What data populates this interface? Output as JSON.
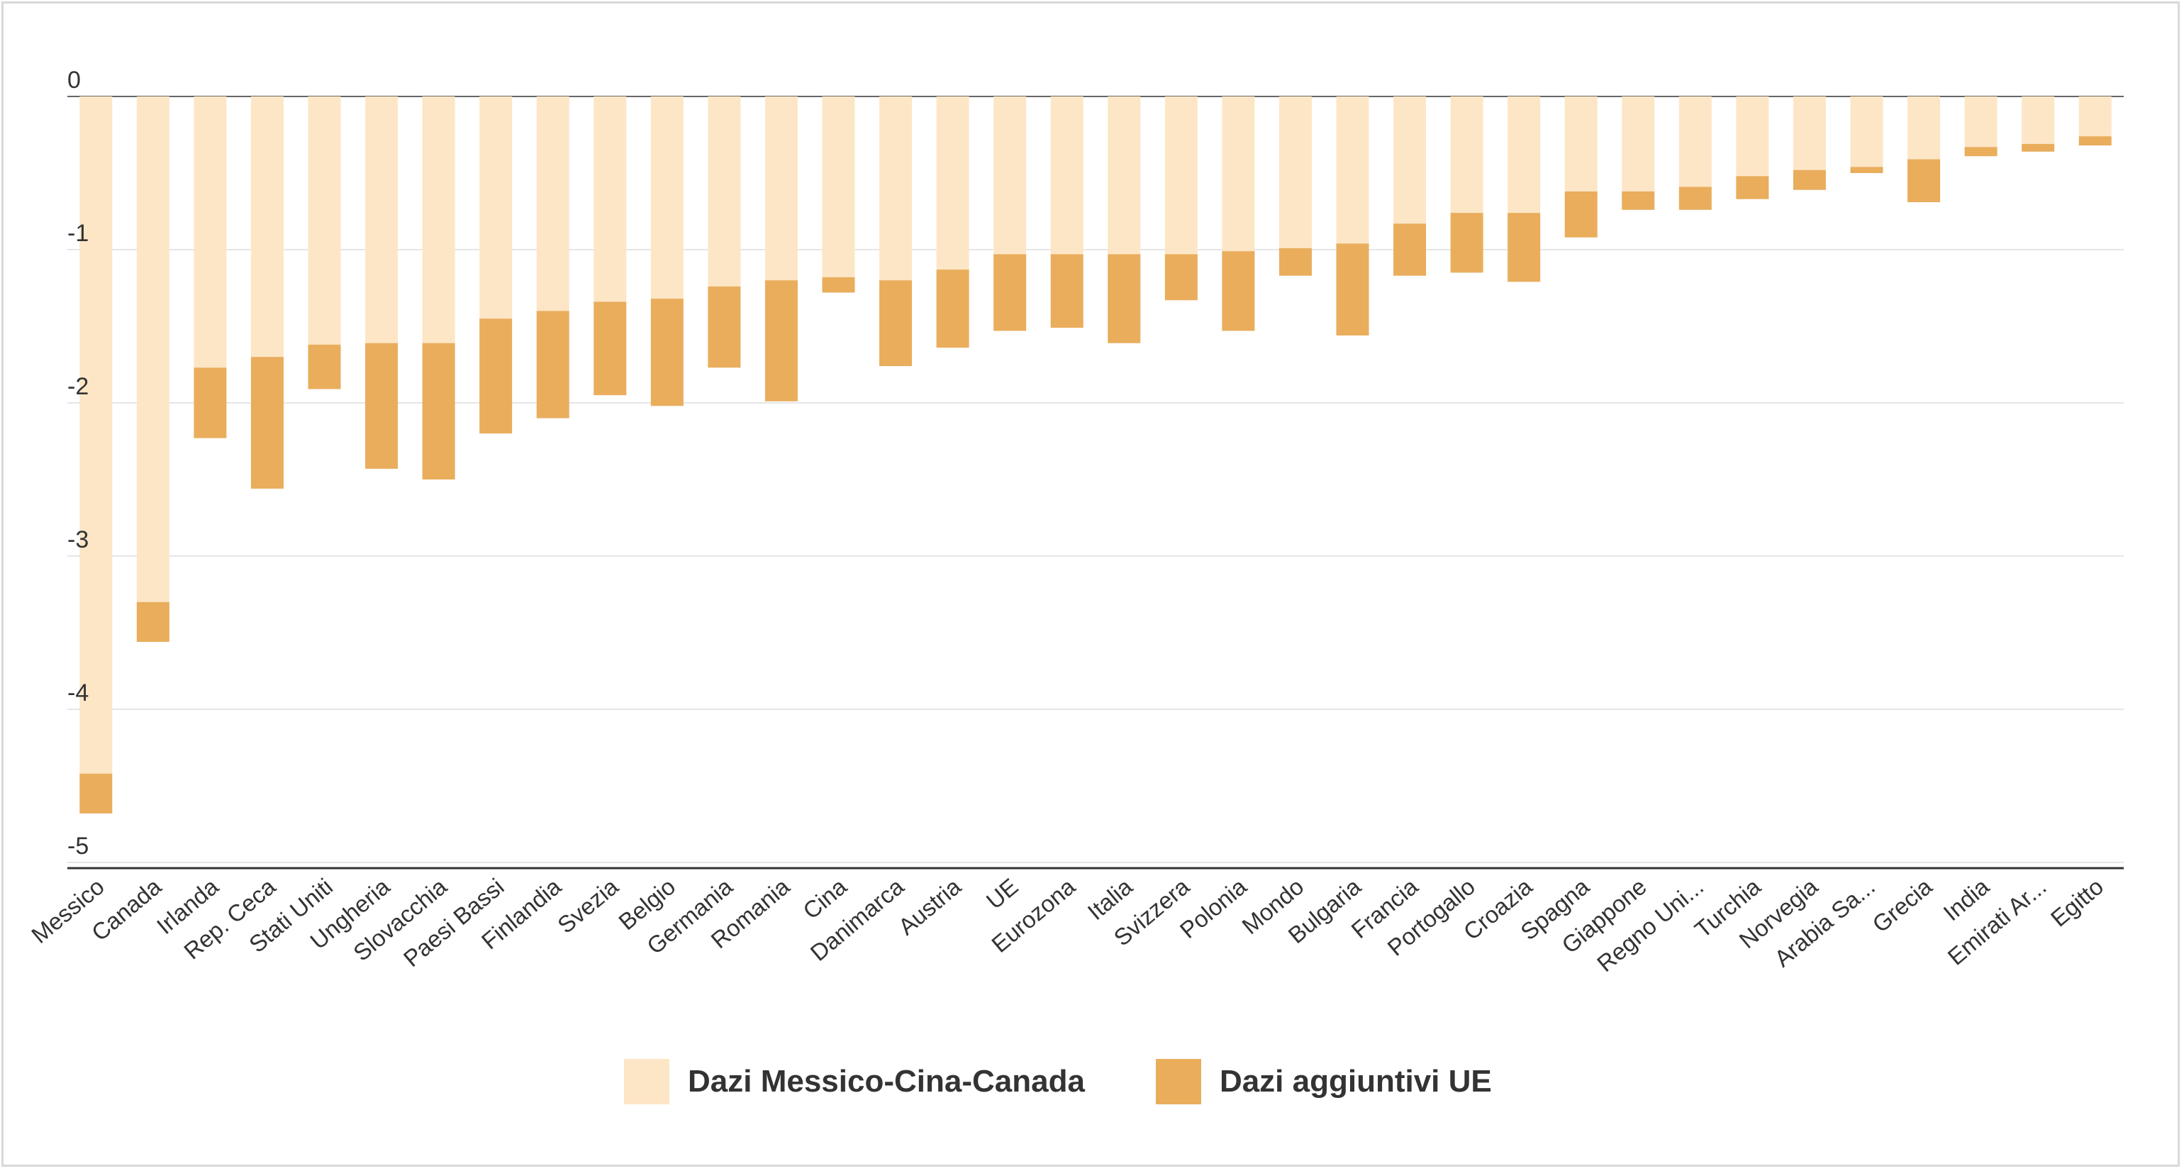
{
  "chart_data": {
    "type": "bar",
    "stacked": true,
    "categories": [
      "Messico",
      "Canada",
      "Irlanda",
      "Rep. Ceca",
      "Stati Uniti",
      "Ungheria",
      "Slovacchia",
      "Paesi Bassi",
      "Finlandia",
      "Svezia",
      "Belgio",
      "Germania",
      "Romania",
      "Cina",
      "Danimarca",
      "Austria",
      "UE",
      "Eurozona",
      "Italia",
      "Svizzera",
      "Polonia",
      "Mondo",
      "Bulgaria",
      "Francia",
      "Portogallo",
      "Croazia",
      "Spagna",
      "Giappone",
      "Regno Uni...",
      "Turchia",
      "Norvegia",
      "Arabia Sa...",
      "Grecia",
      "India",
      "Emirati Ar...",
      "Egitto"
    ],
    "series": [
      {
        "name": "Dazi Messico-Cina-Canada",
        "color": "#fde6c6",
        "values": [
          -4.42,
          -3.3,
          -1.77,
          -1.7,
          -1.62,
          -1.61,
          -1.61,
          -1.45,
          -1.4,
          -1.34,
          -1.32,
          -1.24,
          -1.2,
          -1.18,
          -1.2,
          -1.13,
          -1.03,
          -1.03,
          -1.03,
          -1.03,
          -1.01,
          -0.99,
          -0.96,
          -0.83,
          -0.76,
          -0.76,
          -0.62,
          -0.62,
          -0.59,
          -0.52,
          -0.48,
          -0.46,
          -0.41,
          -0.33,
          -0.31,
          -0.26
        ]
      },
      {
        "name": "Dazi aggiuntivi UE",
        "color": "#e9ad5c",
        "values": [
          -0.26,
          -0.26,
          -0.46,
          -0.86,
          -0.29,
          -0.82,
          -0.89,
          -0.75,
          -0.7,
          -0.61,
          -0.7,
          -0.53,
          -0.79,
          -0.1,
          -0.56,
          -0.51,
          -0.5,
          -0.48,
          -0.58,
          -0.3,
          -0.52,
          -0.18,
          -0.6,
          -0.34,
          -0.39,
          -0.45,
          -0.3,
          -0.12,
          -0.15,
          -0.15,
          -0.13,
          -0.04,
          -0.28,
          -0.06,
          -0.05,
          -0.06
        ]
      }
    ],
    "yticks": [
      0,
      -1,
      -2,
      -3,
      -4,
      -5
    ],
    "ylim": [
      -5.1,
      0
    ],
    "grid": true,
    "legend_position": "bottom"
  },
  "legend": {
    "item1": "Dazi Messico-Cina-Canada",
    "item2": "Dazi aggiuntivi UE"
  }
}
